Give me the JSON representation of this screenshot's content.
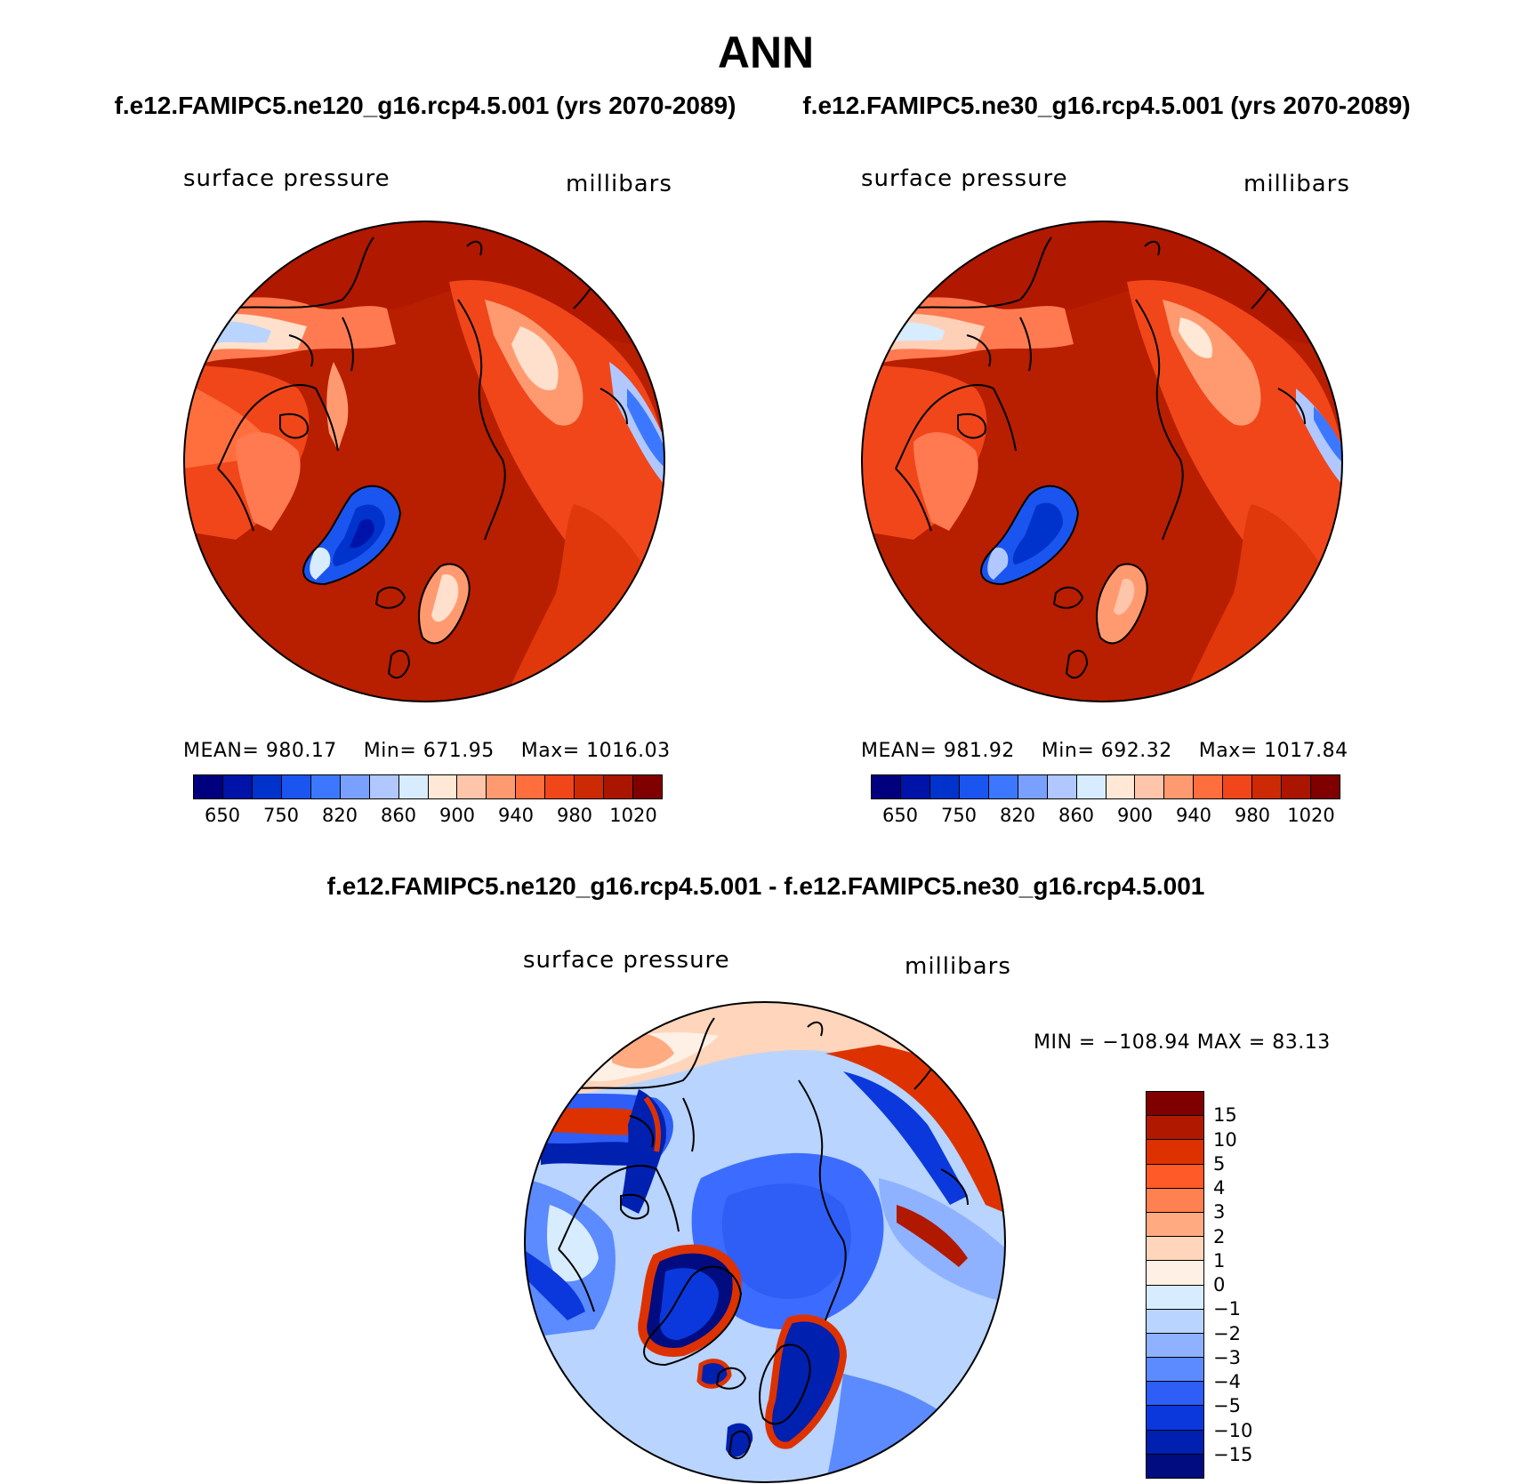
{
  "figure": {
    "title": "ANN",
    "left_case": "f.e12.FAMIPC5.ne120_g16.rcp4.5.001 (yrs 2070-2089)",
    "right_case": "f.e12.FAMIPC5.ne30_g16.rcp4.5.001 (yrs 2070-2089)",
    "diff_title": "f.e12.FAMIPC5.ne120_g16.rcp4.5.001 - f.e12.FAMIPC5.ne30_g16.rcp4.5.001"
  },
  "panels": [
    {
      "variable": "surface pressure",
      "units": "millibars",
      "stats": {
        "mean_label": "MEAN=",
        "mean": "980.17",
        "min_label": "Min=",
        "min": "671.95",
        "max_label": "Max=",
        "max": "1016.03"
      }
    },
    {
      "variable": "surface pressure",
      "units": "millibars",
      "stats": {
        "mean_label": "MEAN=",
        "mean": "981.92",
        "min_label": "Min=",
        "min": "692.32",
        "max_label": "Max=",
        "max": "1017.84"
      }
    }
  ],
  "diff_panel": {
    "variable": "surface pressure",
    "units": "millibars",
    "minmax_text": "MIN = −108.94 MAX =  83.13"
  },
  "colorbar_top": {
    "colors": [
      "#00007f",
      "#0013a8",
      "#0033cc",
      "#1a55f0",
      "#3c78ff",
      "#7aa0ff",
      "#b0c8ff",
      "#d8ecff",
      "#ffe8d6",
      "#ffc5aa",
      "#ff9a70",
      "#ff6e3c",
      "#f0461a",
      "#cc2a05",
      "#aa1500",
      "#800000"
    ],
    "tick_labels": [
      "650",
      "750",
      "820",
      "860",
      "900",
      "940",
      "980",
      "1020"
    ]
  },
  "colorbar_diff": {
    "colors": [
      "#800000",
      "#b01800",
      "#dd3200",
      "#ff5a28",
      "#ff8050",
      "#ffaa80",
      "#ffd5bb",
      "#fff0e5",
      "#d8ecff",
      "#b8d4ff",
      "#8eb2ff",
      "#5c8aff",
      "#2e5ef5",
      "#0a38dc",
      "#0020b0",
      "#000c80"
    ],
    "tick_labels": [
      "15",
      "10",
      "5",
      "4",
      "3",
      "2",
      "1",
      "0",
      "−1",
      "−2",
      "−3",
      "−4",
      "−5",
      "−10",
      "−15"
    ]
  }
}
